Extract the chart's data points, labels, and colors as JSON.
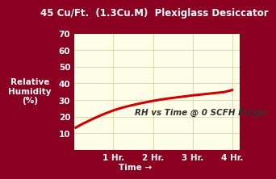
{
  "title": "45 Cu/Ft.  (1.3Cu.M)  Plexiglass Desiccator",
  "title_color": "#FFFFFF",
  "background_outer": "#8B0020",
  "background_inner": "#FEFEE8",
  "curve_color": "#CC0000",
  "annotation": "RH vs Time @ 0 SCFH Purge",
  "annotation_color": "#333333",
  "xlabel": "Time →",
  "xlabel_color": "#FFFFFF",
  "ylabel_line1": "Relative",
  "ylabel_line2": "Humidity",
  "ylabel_line3": "(%)",
  "ylabel_color": "#FFFFFF",
  "xlim": [
    0,
    4.2
  ],
  "ylim": [
    0,
    70
  ],
  "yticks": [
    10,
    20,
    30,
    40,
    50,
    60,
    70
  ],
  "xtick_labels": [
    "1 Hr.",
    "2 Hr.",
    "3 Hr.",
    "4 Hr."
  ],
  "xtick_positions": [
    1,
    2,
    3,
    4
  ],
  "title_fontsize": 8.5,
  "axis_label_fontsize": 7.5,
  "tick_fontsize": 7.5,
  "annotation_fontsize": 7.5,
  "curve_x": [
    0.05,
    0.2,
    0.4,
    0.6,
    0.8,
    1.0,
    1.2,
    1.4,
    1.6,
    1.8,
    2.0,
    2.2,
    2.4,
    2.6,
    2.8,
    3.0,
    3.2,
    3.4,
    3.6,
    3.8,
    4.0
  ],
  "curve_y": [
    13.5,
    15.5,
    17.8,
    20.0,
    22.0,
    23.8,
    25.3,
    26.5,
    27.6,
    28.6,
    29.5,
    30.3,
    31.0,
    31.6,
    32.2,
    32.8,
    33.3,
    33.8,
    34.3,
    34.8,
    36.0
  ],
  "grid_color": "#CCCC99",
  "curve_linewidth": 2.2,
  "tick_color": "#FFFFFF",
  "dot_color": "#8B0020"
}
